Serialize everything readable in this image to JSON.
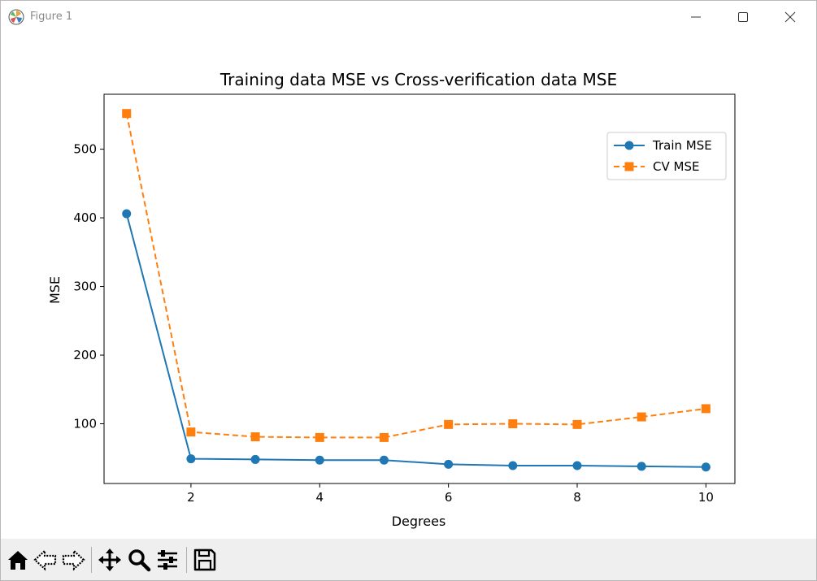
{
  "window": {
    "title": "Figure 1",
    "minimize_icon": "minimize-icon",
    "maximize_icon": "maximize-icon",
    "close_icon": "close-icon"
  },
  "toolbar": {
    "buttons": [
      {
        "name": "home-button",
        "icon": "home-icon"
      },
      {
        "name": "back-button",
        "icon": "back-arrow-icon"
      },
      {
        "name": "forward-button",
        "icon": "forward-arrow-icon"
      },
      {
        "name": "pan-button",
        "icon": "move-icon"
      },
      {
        "name": "zoom-button",
        "icon": "magnifier-icon"
      },
      {
        "name": "configure-subplots-button",
        "icon": "sliders-icon"
      },
      {
        "name": "save-button",
        "icon": "floppy-disk-icon"
      }
    ]
  },
  "chart_data": {
    "type": "line",
    "title": "Training data MSE vs Cross-verification data MSE",
    "xlabel": "Degrees",
    "ylabel": "MSE",
    "x": [
      1,
      2,
      3,
      4,
      5,
      6,
      7,
      8,
      9,
      10
    ],
    "xlim": [
      0.65,
      10.45
    ],
    "ylim": [
      13,
      580
    ],
    "xticks": [
      2,
      4,
      6,
      8,
      10
    ],
    "yticks": [
      100,
      200,
      300,
      400,
      500
    ],
    "grid": false,
    "legend_position": "top-right",
    "series": [
      {
        "name": "Train MSE",
        "color": "#1f77b4",
        "line_style": "solid",
        "marker": "circle",
        "values": [
          406,
          49,
          48,
          47,
          47,
          41,
          39,
          39,
          38,
          37
        ]
      },
      {
        "name": "CV MSE",
        "color": "#ff7f0e",
        "line_style": "dashed",
        "marker": "square",
        "values": [
          552,
          88,
          81,
          80,
          80,
          99,
          100,
          99,
          110,
          122
        ]
      }
    ]
  }
}
